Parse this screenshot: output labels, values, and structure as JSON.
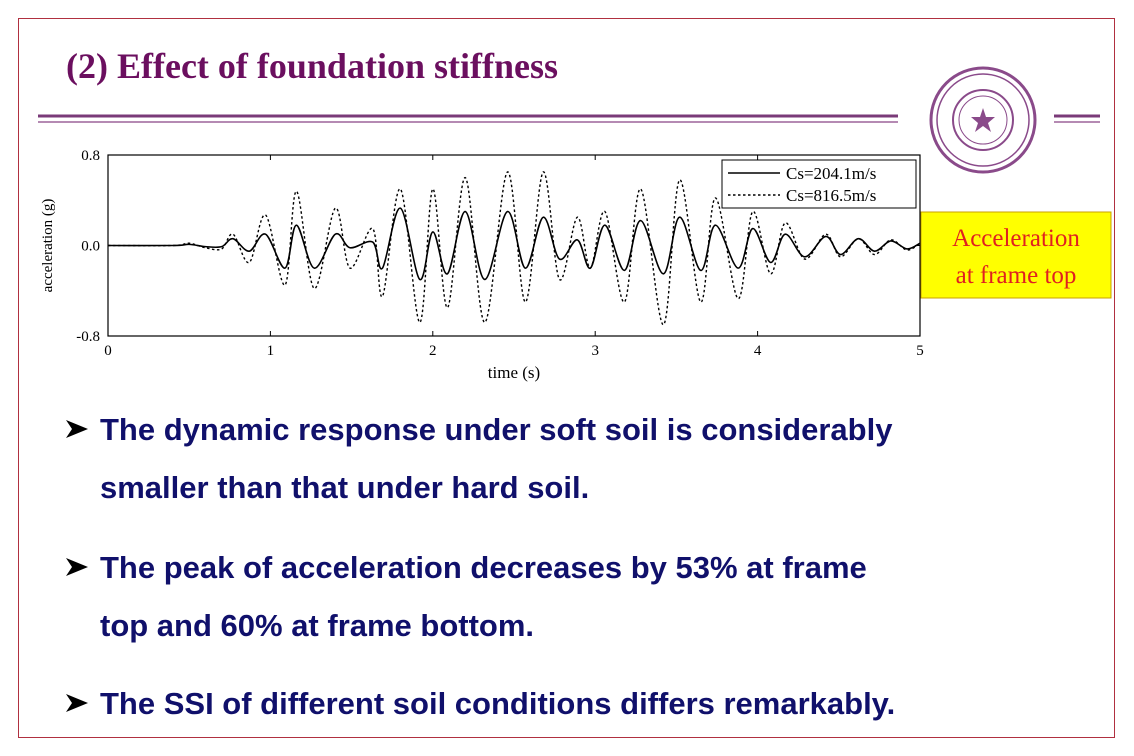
{
  "title": "(2) Effect of foundation stiffness",
  "callout": [
    "Acceleration",
    "at frame top"
  ],
  "bullets": [
    [
      "The dynamic response under soft soil is considerably",
      "smaller than that under hard soil."
    ],
    [
      "The peak of acceleration decreases by 53% at frame",
      "top and 60% at frame bottom."
    ],
    [
      "The SSI of different soil conditions differs remarkably."
    ]
  ],
  "chart_data": {
    "type": "line",
    "xlabel": "time (s)",
    "ylabel": "acceleration (g)",
    "x": [
      0,
      0.4,
      0.5,
      0.6,
      0.7,
      0.77,
      0.87,
      0.97,
      1.09,
      1.16,
      1.27,
      1.4,
      1.49,
      1.63,
      1.69,
      1.8,
      1.92,
      2.0,
      2.09,
      2.2,
      2.32,
      2.46,
      2.57,
      2.68,
      2.78,
      2.89,
      2.97,
      3.06,
      3.18,
      3.28,
      3.42,
      3.52,
      3.65,
      3.74,
      3.88,
      3.97,
      4.08,
      4.17,
      4.29,
      4.42,
      4.51,
      4.62,
      4.72,
      4.82,
      4.92,
      5.0
    ],
    "series": [
      {
        "name": "Cs=204.1m/s",
        "color": "#000000",
        "line_style": "solid",
        "values": [
          0,
          0,
          0.01,
          -0.01,
          -0.01,
          0.06,
          -0.05,
          0.1,
          -0.2,
          0.18,
          -0.2,
          0.1,
          -0.02,
          0.03,
          -0.2,
          0.33,
          -0.3,
          0.12,
          -0.25,
          0.3,
          -0.3,
          0.3,
          -0.2,
          0.25,
          -0.12,
          0.05,
          -0.2,
          0.18,
          -0.22,
          0.22,
          -0.25,
          0.25,
          -0.22,
          0.18,
          -0.2,
          0.15,
          -0.15,
          0.1,
          -0.1,
          0.08,
          -0.08,
          0.06,
          -0.05,
          0.04,
          -0.03,
          0.02
        ]
      },
      {
        "name": "Cs=816.5m/s",
        "color": "#000000",
        "line_style": "dotted",
        "values": [
          0,
          0,
          0.02,
          -0.02,
          -0.03,
          0.1,
          -0.15,
          0.27,
          -0.35,
          0.48,
          -0.38,
          0.33,
          -0.2,
          0.15,
          -0.45,
          0.5,
          -0.68,
          0.5,
          -0.55,
          0.6,
          -0.68,
          0.65,
          -0.5,
          0.65,
          -0.3,
          0.25,
          -0.2,
          0.3,
          -0.5,
          0.5,
          -0.7,
          0.58,
          -0.5,
          0.42,
          -0.47,
          0.3,
          -0.25,
          0.2,
          -0.12,
          0.1,
          -0.1,
          0.06,
          -0.08,
          0.05,
          -0.04,
          0.02
        ]
      }
    ],
    "xlim": [
      0,
      5
    ],
    "xticks": [
      0,
      1,
      2,
      3,
      4,
      5
    ],
    "ylim": [
      -0.8,
      0.8
    ],
    "yticks": [
      -0.8,
      {
        "value": 0,
        "label": "0.0"
      },
      0.8
    ],
    "legend": "upper right",
    "grid": false
  }
}
